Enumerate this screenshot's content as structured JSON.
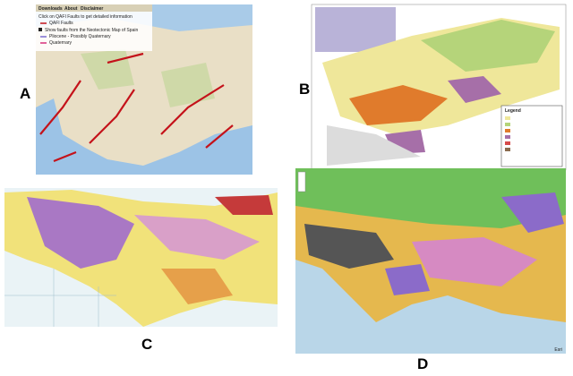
{
  "panels": [
    {
      "label": "A",
      "menu": [
        "Downloads",
        "About",
        "Disclaimer"
      ],
      "lines": [
        "Click on QAFI Faults to get detailed information",
        "QAFI Faults",
        "Show faults from the Neotectonic Map of Spain",
        "Pliocene - Possibly Quaternary",
        "Quaternary"
      ]
    },
    {
      "label": "B",
      "legend_title": "Legend"
    },
    {
      "label": "C"
    },
    {
      "label": "D",
      "credit": "Esri"
    }
  ]
}
